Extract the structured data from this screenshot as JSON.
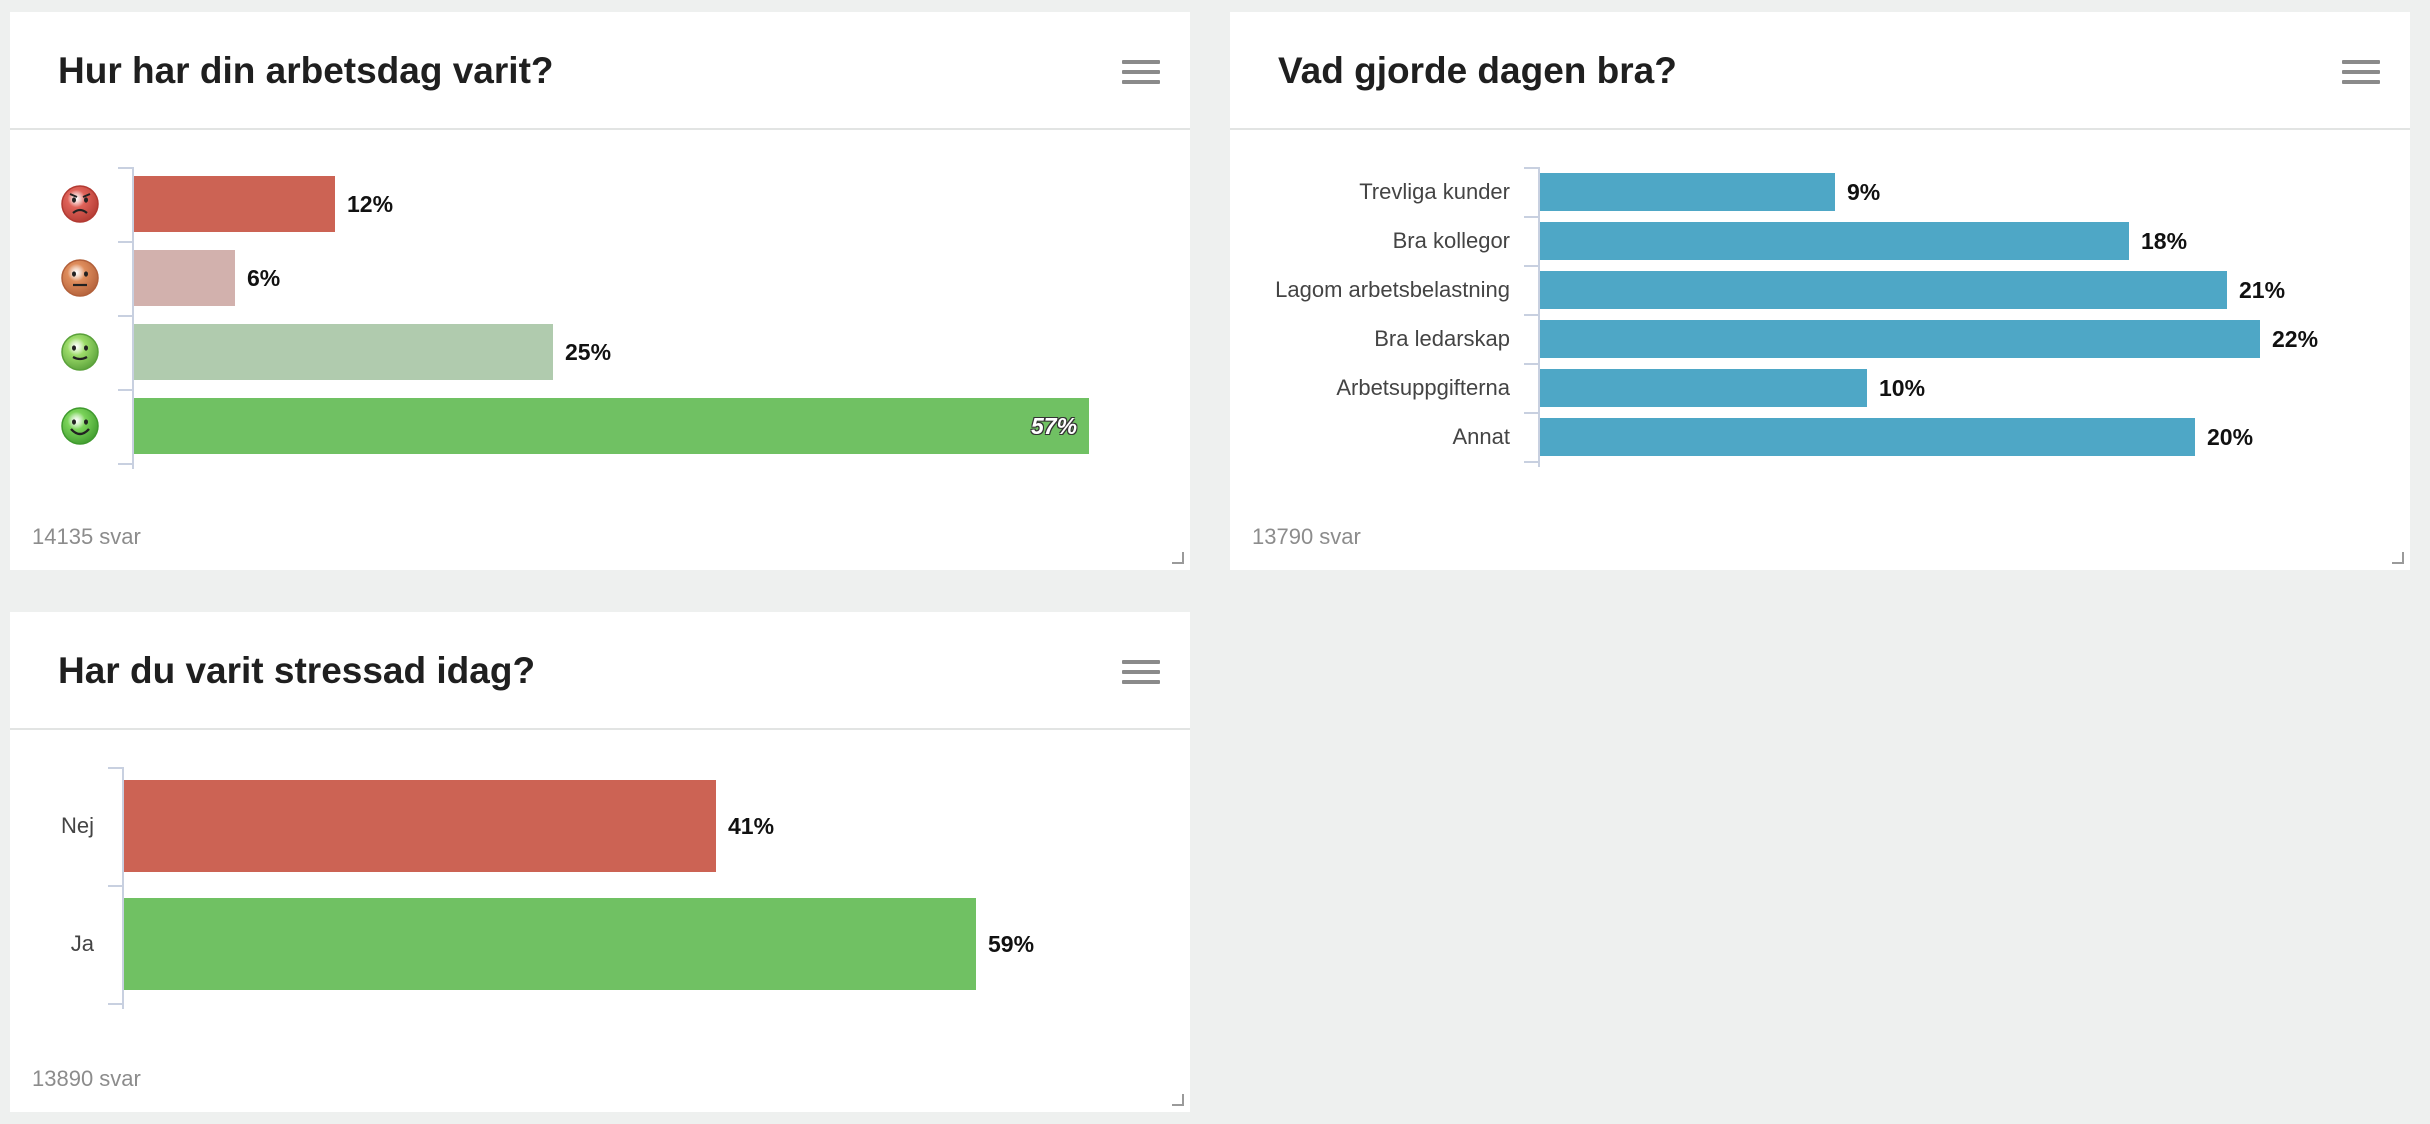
{
  "widgets": [
    {
      "title": "Hur har din arbetsdag varit?",
      "count_text": "14135 svar",
      "chart_data": {
        "type": "bar",
        "orientation": "horizontal",
        "categories": [
          "Mycket dåligt",
          "Dåligt",
          "Bra",
          "Mycket bra"
        ],
        "category_icons": [
          "angry-face-icon",
          "neutral-face-icon",
          "slight-smile-icon",
          "big-smile-icon"
        ],
        "values": [
          12,
          6,
          25,
          57
        ],
        "value_labels": [
          "12%",
          "6%",
          "25%",
          "57%"
        ],
        "colors": [
          "#cc6354",
          "#d2b1ad",
          "#b0cbae",
          "#70c163"
        ],
        "xlim": [
          0,
          57
        ]
      }
    },
    {
      "title": "Vad gjorde dagen bra?",
      "count_text": "13790 svar",
      "chart_data": {
        "type": "bar",
        "orientation": "horizontal",
        "categories": [
          "Trevliga kunder",
          "Bra kollegor",
          "Lagom arbetsbelastning",
          "Bra ledarskap",
          "Arbetsuppgifterna",
          "Annat"
        ],
        "values": [
          9,
          18,
          21,
          22,
          10,
          20
        ],
        "value_labels": [
          "9%",
          "18%",
          "21%",
          "22%",
          "10%",
          "20%"
        ],
        "colors": [
          "#4ea7c6"
        ],
        "xlim": [
          0,
          22
        ]
      }
    },
    {
      "title": "Har du varit stressad idag?",
      "count_text": "13890 svar",
      "chart_data": {
        "type": "bar",
        "orientation": "horizontal",
        "categories": [
          "Nej",
          "Ja"
        ],
        "values": [
          41,
          59
        ],
        "value_labels": [
          "41%",
          "59%"
        ],
        "colors": [
          "#cc6354",
          "#70c163"
        ],
        "xlim": [
          0,
          59
        ]
      }
    }
  ]
}
